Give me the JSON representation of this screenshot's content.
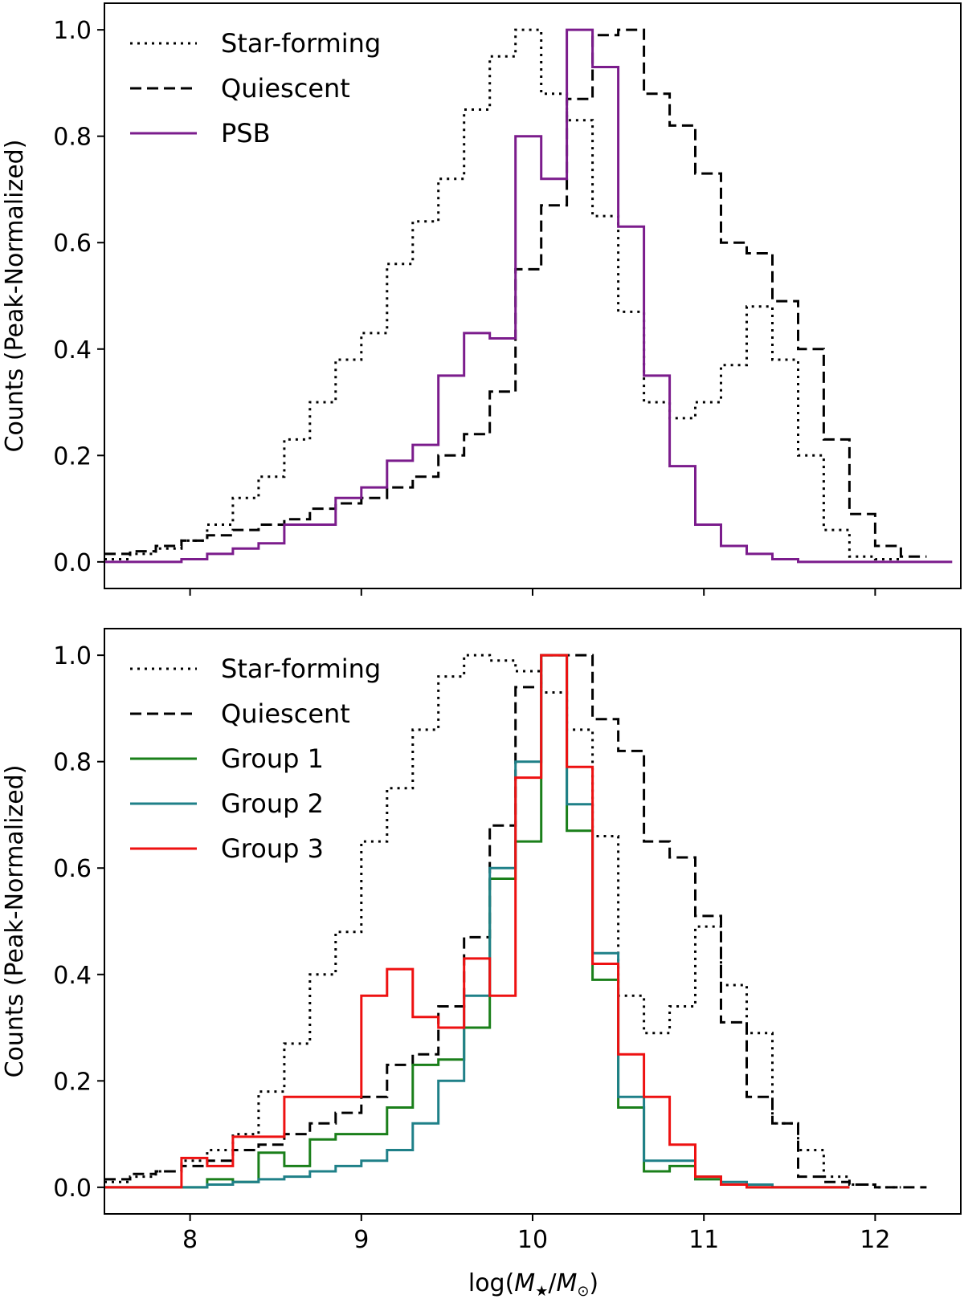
{
  "figure": {
    "x_axis_label_parts": [
      "log(",
      "M",
      "★",
      "/",
      "M",
      "⊙",
      ")"
    ]
  },
  "chart_data": [
    {
      "type": "line",
      "drawstyle": "steps-post",
      "xlim": [
        7.5,
        12.5
      ],
      "ylim": [
        -0.05,
        1.05
      ],
      "xticks": [
        8,
        9,
        10,
        11,
        12
      ],
      "yticks": [
        "0.0",
        "0.2",
        "0.4",
        "0.6",
        "0.8",
        "1.0"
      ],
      "show_x_tick_labels": false,
      "xlabel": "",
      "ylabel": "Counts (Peak-Normalized)",
      "legend": "top-left",
      "grid": false,
      "series": [
        {
          "name": "Star-forming",
          "color": "#000000",
          "style": "dotted",
          "x": [
            7.5,
            7.65,
            7.8,
            7.95,
            8.1,
            8.25,
            8.4,
            8.55,
            8.7,
            8.85,
            9.0,
            9.15,
            9.3,
            9.45,
            9.6,
            9.75,
            9.9,
            10.05,
            10.2,
            10.35,
            10.5,
            10.65,
            10.8,
            10.95,
            11.1,
            11.25,
            11.4,
            11.55,
            11.7,
            11.85,
            12.0
          ],
          "y": [
            0.005,
            0.015,
            0.025,
            0.04,
            0.07,
            0.12,
            0.16,
            0.23,
            0.3,
            0.38,
            0.43,
            0.56,
            0.64,
            0.72,
            0.85,
            0.95,
            1.0,
            0.88,
            0.83,
            0.65,
            0.47,
            0.3,
            0.27,
            0.3,
            0.37,
            0.48,
            0.38,
            0.2,
            0.06,
            0.01,
            0.005
          ]
        },
        {
          "name": "Quiescent",
          "color": "#000000",
          "style": "dashed",
          "x": [
            7.5,
            7.65,
            7.8,
            7.95,
            8.1,
            8.25,
            8.4,
            8.55,
            8.7,
            8.85,
            9.0,
            9.15,
            9.3,
            9.45,
            9.6,
            9.75,
            9.9,
            10.05,
            10.2,
            10.35,
            10.5,
            10.65,
            10.8,
            10.95,
            11.1,
            11.25,
            11.4,
            11.55,
            11.7,
            11.85,
            12.0,
            12.15
          ],
          "y": [
            0.015,
            0.02,
            0.03,
            0.04,
            0.05,
            0.06,
            0.07,
            0.08,
            0.1,
            0.11,
            0.12,
            0.14,
            0.16,
            0.2,
            0.24,
            0.32,
            0.55,
            0.67,
            0.87,
            0.99,
            1.0,
            0.88,
            0.82,
            0.73,
            0.6,
            0.58,
            0.49,
            0.4,
            0.23,
            0.09,
            0.03,
            0.01
          ]
        },
        {
          "name": "PSB",
          "color": "#7b1c8c",
          "style": "solid",
          "x": [
            7.5,
            7.65,
            7.8,
            7.95,
            8.1,
            8.25,
            8.4,
            8.55,
            8.7,
            8.85,
            9.0,
            9.15,
            9.3,
            9.45,
            9.6,
            9.75,
            9.9,
            10.05,
            10.2,
            10.35,
            10.5,
            10.65,
            10.8,
            10.95,
            11.1,
            11.25,
            11.4,
            11.55,
            11.7,
            11.85,
            12.0,
            12.15,
            12.3
          ],
          "y": [
            0.0,
            0.0,
            0.0,
            0.005,
            0.015,
            0.025,
            0.035,
            0.07,
            0.07,
            0.12,
            0.14,
            0.19,
            0.22,
            0.35,
            0.43,
            0.42,
            0.8,
            0.72,
            1.0,
            0.93,
            0.63,
            0.35,
            0.18,
            0.07,
            0.03,
            0.015,
            0.005,
            0.0,
            0.0,
            0.0,
            0.0,
            0.0,
            0.0
          ]
        }
      ]
    },
    {
      "type": "line",
      "drawstyle": "steps-post",
      "xlim": [
        7.5,
        12.5
      ],
      "ylim": [
        -0.05,
        1.05
      ],
      "xticks": [
        8,
        9,
        10,
        11,
        12
      ],
      "xtick_labels": [
        "8",
        "9",
        "10",
        "11",
        "12"
      ],
      "yticks": [
        "0.0",
        "0.2",
        "0.4",
        "0.6",
        "0.8",
        "1.0"
      ],
      "show_x_tick_labels": true,
      "xlabel": "log(M★/M⊙)",
      "ylabel": "Counts (Peak-Normalized)",
      "legend": "top-left",
      "grid": false,
      "series": [
        {
          "name": "Star-forming",
          "color": "#000000",
          "style": "dotted",
          "x": [
            7.5,
            7.65,
            7.8,
            7.95,
            8.1,
            8.25,
            8.4,
            8.55,
            8.7,
            8.85,
            9.0,
            9.15,
            9.3,
            9.45,
            9.6,
            9.75,
            9.9,
            10.05,
            10.2,
            10.35,
            10.5,
            10.65,
            10.8,
            10.95,
            11.1,
            11.25,
            11.4,
            11.55,
            11.7,
            11.85,
            12.0
          ],
          "y": [
            0.01,
            0.02,
            0.03,
            0.05,
            0.07,
            0.1,
            0.18,
            0.27,
            0.4,
            0.48,
            0.65,
            0.75,
            0.86,
            0.96,
            1.0,
            0.99,
            0.97,
            0.93,
            0.86,
            0.66,
            0.36,
            0.29,
            0.34,
            0.49,
            0.38,
            0.29,
            0.12,
            0.07,
            0.02,
            0.005,
            0.0
          ]
        },
        {
          "name": "Quiescent",
          "color": "#000000",
          "style": "dashed",
          "x": [
            7.5,
            7.65,
            7.8,
            7.95,
            8.1,
            8.25,
            8.4,
            8.55,
            8.7,
            8.85,
            9.0,
            9.15,
            9.3,
            9.45,
            9.6,
            9.75,
            9.9,
            10.05,
            10.2,
            10.35,
            10.5,
            10.65,
            10.8,
            10.95,
            11.1,
            11.25,
            11.4,
            11.55,
            11.7,
            11.85,
            12.0,
            12.15
          ],
          "y": [
            0.015,
            0.025,
            0.03,
            0.04,
            0.05,
            0.07,
            0.08,
            0.1,
            0.12,
            0.14,
            0.17,
            0.23,
            0.25,
            0.34,
            0.47,
            0.68,
            0.94,
            1.0,
            1.0,
            0.88,
            0.82,
            0.65,
            0.62,
            0.51,
            0.31,
            0.17,
            0.12,
            0.02,
            0.01,
            0.005,
            0.0,
            0.0
          ]
        },
        {
          "name": "Group 1",
          "color": "#1a7f1a",
          "style": "solid",
          "x": [
            7.5,
            7.65,
            7.8,
            7.95,
            8.1,
            8.25,
            8.4,
            8.55,
            8.7,
            8.85,
            9.0,
            9.15,
            9.3,
            9.45,
            9.6,
            9.75,
            9.9,
            10.05,
            10.2,
            10.35,
            10.5,
            10.65,
            10.8,
            10.95,
            11.1,
            11.25,
            11.4,
            11.55,
            11.7
          ],
          "y": [
            0.0,
            0.0,
            0.0,
            0.0,
            0.015,
            0.01,
            0.065,
            0.04,
            0.09,
            0.1,
            0.1,
            0.15,
            0.23,
            0.24,
            0.3,
            0.58,
            0.65,
            1.0,
            0.67,
            0.39,
            0.15,
            0.03,
            0.04,
            0.015,
            0.005,
            0.0,
            0.0,
            0.0,
            0.0
          ]
        },
        {
          "name": "Group 2",
          "color": "#1f8088",
          "style": "solid",
          "x": [
            7.5,
            7.65,
            7.8,
            7.95,
            8.1,
            8.25,
            8.4,
            8.55,
            8.7,
            8.85,
            9.0,
            9.15,
            9.3,
            9.45,
            9.6,
            9.75,
            9.9,
            10.05,
            10.2,
            10.35,
            10.5,
            10.65,
            10.8,
            10.95,
            11.1,
            11.25,
            11.4,
            11.55,
            11.7
          ],
          "y": [
            0.0,
            0.0,
            0.0,
            0.0,
            0.005,
            0.01,
            0.015,
            0.02,
            0.03,
            0.04,
            0.05,
            0.07,
            0.12,
            0.2,
            0.36,
            0.6,
            0.8,
            1.0,
            0.72,
            0.44,
            0.17,
            0.05,
            0.05,
            0.02,
            0.01,
            0.005,
            0.0,
            0.0,
            0.0
          ]
        },
        {
          "name": "Group 3",
          "color": "#ee1111",
          "style": "solid",
          "x": [
            7.5,
            7.65,
            7.8,
            7.95,
            8.1,
            8.25,
            8.4,
            8.55,
            8.7,
            8.85,
            9.0,
            9.15,
            9.3,
            9.45,
            9.6,
            9.75,
            9.9,
            10.05,
            10.2,
            10.35,
            10.5,
            10.65,
            10.8,
            10.95,
            11.1,
            11.25,
            11.4,
            11.55,
            11.7
          ],
          "y": [
            0.0,
            0.0,
            0.0,
            0.055,
            0.04,
            0.095,
            0.095,
            0.17,
            0.17,
            0.17,
            0.36,
            0.41,
            0.32,
            0.3,
            0.43,
            0.36,
            0.77,
            1.0,
            0.79,
            0.42,
            0.25,
            0.17,
            0.08,
            0.02,
            0.005,
            0.0,
            0.0,
            0.0,
            0.0
          ]
        }
      ]
    }
  ]
}
